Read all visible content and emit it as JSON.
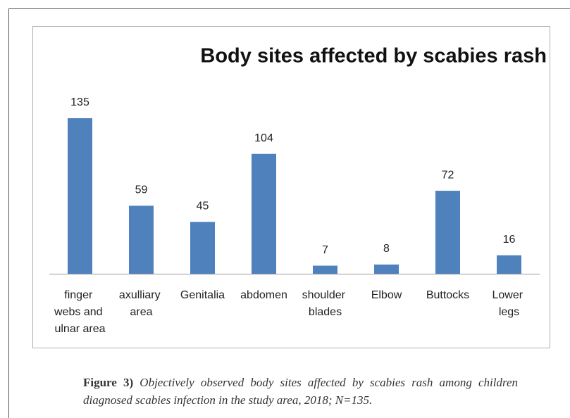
{
  "chart_data": {
    "type": "bar",
    "title": "Body sites affected by scabies rash",
    "categories": [
      "finger webs and ulnar area",
      "axulliary area",
      "Genitalia",
      "abdomen",
      "shoulder blades",
      "Elbow",
      "Buttocks",
      "Lower legs"
    ],
    "values": [
      135,
      59,
      45,
      104,
      7,
      8,
      72,
      16
    ],
    "color": "#4f81bd",
    "ylim": [
      0,
      160
    ],
    "grid": false
  },
  "caption": {
    "label": "Figure 3)",
    "text": "Objectively observed body sites affected by scabies rash among children diagnosed scabies infection in the study area, 2018; N=135."
  }
}
